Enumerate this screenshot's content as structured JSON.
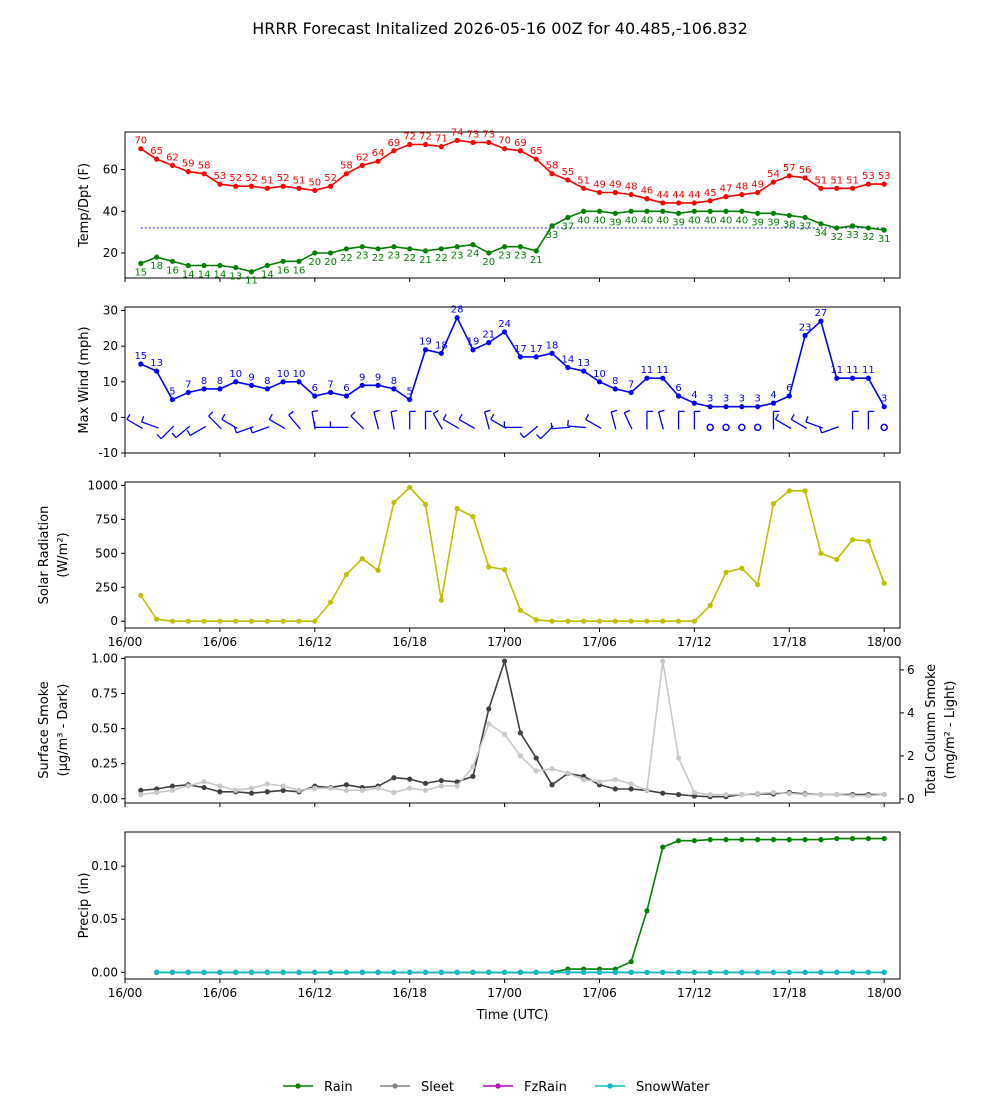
{
  "title": "HRRR Forecast Initalized 2026-05-16 00Z for 40.485,-106.832",
  "colors": {
    "temp": "#ff0000",
    "dewpoint": "#008000",
    "wind": "#0000ff",
    "solar": "#bfbf00",
    "smoke_dark": "#404040",
    "smoke_light": "#c8c8c8",
    "rain": "#008000",
    "sleet": "#808080",
    "fzrain": "#bf00bf",
    "snowwater": "#00bfbf"
  },
  "x_ticks": [
    "16/00",
    "16/06",
    "16/12",
    "16/18",
    "17/00",
    "17/06",
    "17/12",
    "17/18",
    "18/00"
  ],
  "xlabel": "Time (UTC)",
  "chart_data": [
    {
      "type": "line",
      "panel": "temperature",
      "ylabel": "Temp/Dpt (F)",
      "ylim": [
        8,
        78
      ],
      "yticks": [
        20,
        40,
        60
      ],
      "x_hours": [
        1,
        2,
        3,
        4,
        5,
        6,
        7,
        8,
        9,
        10,
        11,
        12,
        13,
        14,
        15,
        16,
        17,
        18,
        19,
        20,
        21,
        22,
        23,
        24,
        25,
        26,
        27,
        28,
        29,
        30,
        31,
        32,
        33,
        34,
        35,
        36,
        37,
        38,
        39,
        40,
        41,
        42,
        43,
        44,
        45,
        46,
        47,
        48
      ],
      "series": [
        {
          "key": "temp",
          "values": [
            70,
            65,
            62,
            59,
            58,
            53,
            52,
            52,
            51,
            52,
            51,
            50,
            52,
            58,
            62,
            64,
            69,
            72,
            72,
            71,
            74,
            73,
            73,
            70,
            69,
            65,
            58,
            55,
            51,
            49,
            49,
            48,
            46,
            44,
            44,
            44,
            45,
            47,
            48,
            49,
            54,
            57,
            56,
            51,
            51,
            51,
            53,
            53
          ]
        },
        {
          "key": "dewpoint",
          "values": [
            15,
            18,
            16,
            14,
            14,
            14,
            13,
            11,
            14,
            16,
            16,
            20,
            20,
            22,
            23,
            22,
            23,
            22,
            21,
            22,
            23,
            24,
            20,
            23,
            23,
            21,
            33,
            37,
            40,
            40,
            39,
            40,
            40,
            40,
            39,
            40,
            40,
            40,
            40,
            39,
            39,
            38,
            37,
            34,
            32,
            33,
            32,
            31
          ]
        }
      ],
      "reference_line": 32
    },
    {
      "type": "line",
      "panel": "wind",
      "ylabel": "Max Wind (mph)",
      "ylim": [
        -10,
        31
      ],
      "yticks": [
        -10,
        0,
        10,
        20,
        30
      ],
      "x_hours": [
        1,
        2,
        3,
        4,
        5,
        6,
        7,
        8,
        9,
        10,
        11,
        12,
        13,
        14,
        15,
        16,
        17,
        18,
        19,
        20,
        21,
        22,
        23,
        24,
        25,
        26,
        27,
        28,
        29,
        30,
        31,
        32,
        33,
        34,
        35,
        36,
        37,
        38,
        39,
        40,
        41,
        42,
        43,
        44,
        45,
        46,
        47,
        48
      ],
      "series": [
        {
          "key": "wind",
          "values": [
            15,
            13,
            5,
            7,
            8,
            8,
            10,
            9,
            8,
            10,
            10,
            6,
            7,
            6,
            9,
            9,
            8,
            5,
            19,
            18,
            28,
            19,
            21,
            24,
            17,
            17,
            18,
            14,
            13,
            10,
            8,
            7,
            11,
            11,
            6,
            4,
            3,
            3,
            3,
            3,
            4,
            6,
            23,
            27,
            11,
            11,
            11,
            3
          ]
        }
      ],
      "wind_dirs_deg": [
        300,
        290,
        225,
        230,
        240,
        315,
        300,
        250,
        250,
        300,
        320,
        350,
        270,
        270,
        315,
        345,
        350,
        0,
        0,
        330,
        300,
        300,
        345,
        300,
        270,
        230,
        225,
        265,
        275,
        300,
        345,
        335,
        0,
        345,
        0,
        0,
        0,
        0,
        0,
        0,
        0,
        300,
        300,
        290,
        250,
        0,
        0,
        0
      ]
    },
    {
      "type": "line",
      "panel": "solar",
      "ylabel": "Solar Radiation (W/m²)",
      "ylim": [
        -50,
        1025
      ],
      "yticks": [
        0,
        250,
        500,
        750,
        1000
      ],
      "x_hours": [
        1,
        2,
        3,
        4,
        5,
        6,
        7,
        8,
        9,
        10,
        11,
        12,
        13,
        14,
        15,
        16,
        17,
        18,
        19,
        20,
        21,
        22,
        23,
        24,
        25,
        26,
        27,
        28,
        29,
        30,
        31,
        32,
        33,
        34,
        35,
        36,
        37,
        38,
        39,
        40,
        41,
        42,
        43,
        44,
        45,
        46,
        47,
        48
      ],
      "series": [
        {
          "key": "solar",
          "values": [
            190,
            15,
            0,
            0,
            0,
            0,
            0,
            0,
            0,
            0,
            0,
            0,
            140,
            345,
            460,
            375,
            875,
            985,
            860,
            155,
            830,
            770,
            400,
            380,
            80,
            10,
            0,
            0,
            0,
            0,
            0,
            0,
            0,
            0,
            0,
            0,
            115,
            360,
            390,
            270,
            865,
            960,
            960,
            500,
            455,
            600,
            590,
            280
          ]
        }
      ]
    },
    {
      "type": "line",
      "panel": "smoke",
      "ylabel": "Surface Smoke (µg/m³ - Dark)",
      "ylabel_right": "Total Column Smoke (mg/m² - Light)",
      "ylim": [
        -0.03,
        1.01
      ],
      "yticks": [
        0.0,
        0.25,
        0.5,
        0.75,
        1.0
      ],
      "ylim_right": [
        -0.19,
        6.6
      ],
      "yticks_right": [
        0,
        2,
        4,
        6
      ],
      "x_hours": [
        1,
        2,
        3,
        4,
        5,
        6,
        7,
        8,
        9,
        10,
        11,
        12,
        13,
        14,
        15,
        16,
        17,
        18,
        19,
        20,
        21,
        22,
        23,
        24,
        25,
        26,
        27,
        28,
        29,
        30,
        31,
        32,
        33,
        34,
        35,
        36,
        37,
        38,
        39,
        40,
        41,
        42,
        43,
        44,
        45,
        46,
        47,
        48
      ],
      "series": [
        {
          "key": "smoke_dark",
          "axis": "left",
          "values": [
            0.06,
            0.07,
            0.09,
            0.1,
            0.08,
            0.05,
            0.05,
            0.04,
            0.05,
            0.06,
            0.05,
            0.09,
            0.08,
            0.1,
            0.08,
            0.09,
            0.15,
            0.14,
            0.11,
            0.13,
            0.12,
            0.16,
            0.64,
            0.98,
            0.47,
            0.29,
            0.1,
            0.18,
            0.16,
            0.1,
            0.07,
            0.07,
            0.06,
            0.04,
            0.03,
            0.02,
            0.015,
            0.015,
            0.03,
            0.035,
            0.035,
            0.045,
            0.035,
            0.03,
            0.03,
            0.03,
            0.03,
            0.03
          ]
        },
        {
          "key": "smoke_light",
          "axis": "right",
          "values": [
            0.2,
            0.3,
            0.4,
            0.6,
            0.8,
            0.6,
            0.4,
            0.5,
            0.7,
            0.6,
            0.4,
            0.5,
            0.5,
            0.4,
            0.4,
            0.5,
            0.3,
            0.5,
            0.4,
            0.6,
            0.6,
            1.5,
            3.5,
            3.0,
            2.0,
            1.3,
            1.4,
            1.2,
            0.9,
            0.8,
            0.9,
            0.7,
            0.4,
            6.4,
            1.9,
            0.3,
            0.2,
            0.2,
            0.2,
            0.25,
            0.3,
            0.25,
            0.2,
            0.2,
            0.2,
            0.15,
            0.15,
            0.2
          ]
        }
      ]
    },
    {
      "type": "line",
      "panel": "precip",
      "ylabel": "Precip (in)",
      "ylim": [
        -0.0063,
        0.1322
      ],
      "yticks": [
        0.0,
        0.05,
        0.1
      ],
      "x_hours": [
        2,
        3,
        4,
        5,
        6,
        7,
        8,
        9,
        10,
        11,
        12,
        13,
        14,
        15,
        16,
        17,
        18,
        19,
        20,
        21,
        22,
        23,
        24,
        25,
        26,
        27,
        28,
        29,
        30,
        31,
        32,
        33,
        34,
        35,
        36,
        37,
        38,
        39,
        40,
        41,
        42,
        43,
        44,
        45,
        46,
        47,
        48
      ],
      "series": [
        {
          "name": "Rain",
          "key": "rain",
          "values": [
            0,
            0,
            0,
            0,
            0,
            0,
            0,
            0,
            0,
            0,
            0,
            0,
            0,
            0,
            0,
            0,
            0,
            0,
            0,
            0,
            0,
            0,
            0,
            0,
            0,
            0,
            0.003,
            0.003,
            0.003,
            0.003,
            0.01,
            0.058,
            0.118,
            0.124,
            0.124,
            0.125,
            0.125,
            0.125,
            0.125,
            0.125,
            0.125,
            0.125,
            0.125,
            0.126,
            0.126,
            0.126,
            0.126
          ]
        },
        {
          "name": "Sleet",
          "key": "sleet",
          "values": [
            0,
            0,
            0,
            0,
            0,
            0,
            0,
            0,
            0,
            0,
            0,
            0,
            0,
            0,
            0,
            0,
            0,
            0,
            0,
            0,
            0,
            0,
            0,
            0,
            0,
            0,
            0,
            0,
            0,
            0,
            0,
            0,
            0,
            0,
            0,
            0,
            0,
            0,
            0,
            0,
            0,
            0,
            0,
            0,
            0,
            0,
            0
          ]
        },
        {
          "name": "FzRain",
          "key": "fzrain",
          "values": [
            0,
            0,
            0,
            0,
            0,
            0,
            0,
            0,
            0,
            0,
            0,
            0,
            0,
            0,
            0,
            0,
            0,
            0,
            0,
            0,
            0,
            0,
            0,
            0,
            0,
            0,
            0,
            0,
            0,
            0,
            0,
            0,
            0,
            0,
            0,
            0,
            0,
            0,
            0,
            0,
            0,
            0,
            0,
            0,
            0,
            0,
            0
          ]
        },
        {
          "name": "SnowWater",
          "key": "snowwater",
          "values": [
            0,
            0,
            0,
            0,
            0,
            0,
            0,
            0,
            0,
            0,
            0,
            0,
            0,
            0,
            0,
            0,
            0,
            0,
            0,
            0,
            0,
            0,
            0,
            0,
            0,
            0,
            0,
            0,
            0,
            0,
            0,
            0,
            0,
            0,
            0,
            0,
            0,
            0,
            0,
            0,
            0,
            0,
            0,
            0,
            0,
            0,
            0
          ]
        }
      ],
      "legend": {
        "placement": "bottom-center",
        "labels": [
          "Rain",
          "Sleet",
          "FzRain",
          "SnowWater"
        ]
      }
    }
  ]
}
